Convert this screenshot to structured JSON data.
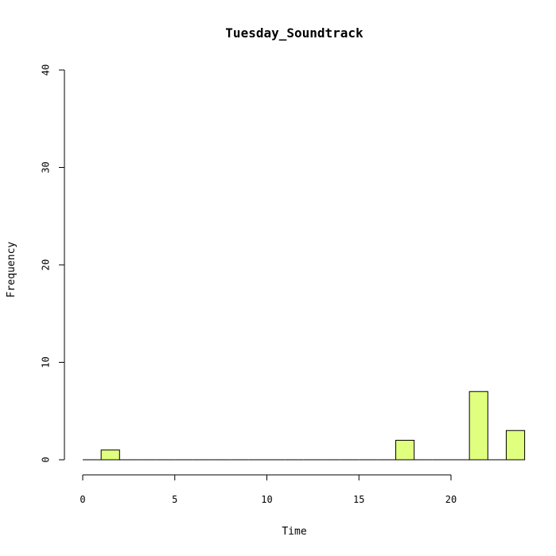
{
  "chart_data": {
    "type": "bar",
    "title": "Tuesday_Soundtrack",
    "xlabel": "Time",
    "ylabel": "Frequency",
    "xlim": [
      0,
      24
    ],
    "ylim": [
      0,
      40
    ],
    "x_ticks": [
      0,
      5,
      10,
      15,
      20
    ],
    "y_ticks": [
      0,
      10,
      20,
      30,
      40
    ],
    "bins": [
      {
        "start": 0,
        "end": 1,
        "value": 0
      },
      {
        "start": 1,
        "end": 2,
        "value": 1
      },
      {
        "start": 2,
        "end": 3,
        "value": 0
      },
      {
        "start": 3,
        "end": 4,
        "value": 0
      },
      {
        "start": 4,
        "end": 5,
        "value": 0
      },
      {
        "start": 5,
        "end": 6,
        "value": 0
      },
      {
        "start": 6,
        "end": 7,
        "value": 0
      },
      {
        "start": 7,
        "end": 8,
        "value": 0
      },
      {
        "start": 8,
        "end": 9,
        "value": 0
      },
      {
        "start": 9,
        "end": 10,
        "value": 0
      },
      {
        "start": 10,
        "end": 11,
        "value": 0
      },
      {
        "start": 11,
        "end": 12,
        "value": 0
      },
      {
        "start": 12,
        "end": 13,
        "value": 0
      },
      {
        "start": 13,
        "end": 14,
        "value": 0
      },
      {
        "start": 14,
        "end": 15,
        "value": 0
      },
      {
        "start": 15,
        "end": 16,
        "value": 0
      },
      {
        "start": 16,
        "end": 17,
        "value": 0
      },
      {
        "start": 17,
        "end": 18,
        "value": 2
      },
      {
        "start": 18,
        "end": 19,
        "value": 0
      },
      {
        "start": 19,
        "end": 20,
        "value": 0
      },
      {
        "start": 20,
        "end": 21,
        "value": 0
      },
      {
        "start": 21,
        "end": 22,
        "value": 7
      },
      {
        "start": 22,
        "end": 23,
        "value": 0
      },
      {
        "start": 23,
        "end": 24,
        "value": 3
      }
    ],
    "bar_color": "#e1ff7f",
    "grid": false
  }
}
